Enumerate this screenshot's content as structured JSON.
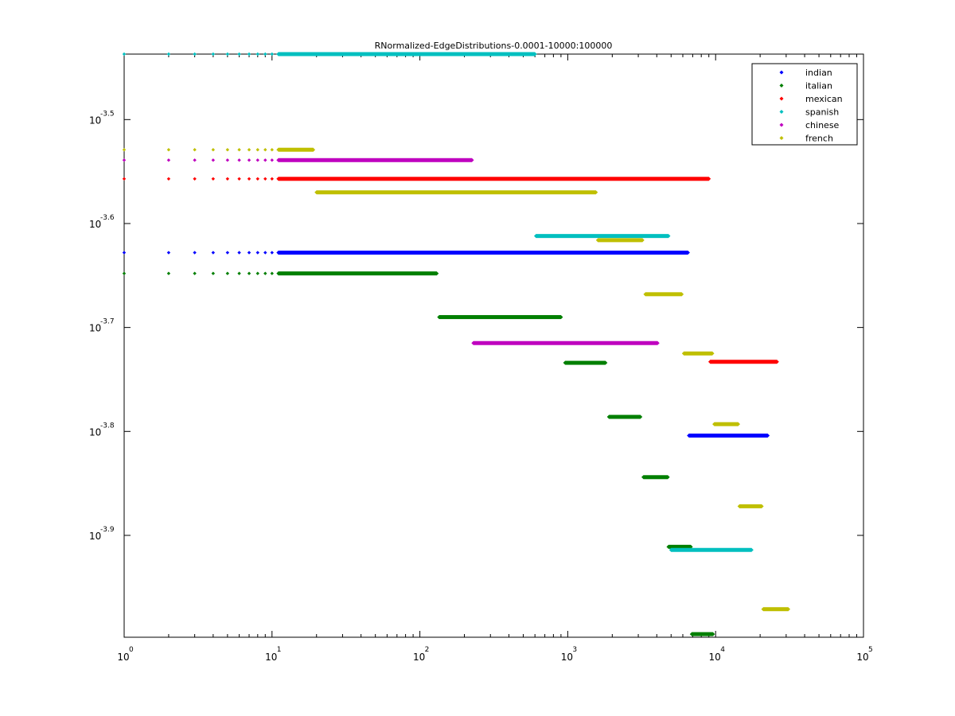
{
  "chart_data": {
    "type": "scatter",
    "title": "RNormalized-EdgeDistributions-0.0001-10000:100000",
    "x_scale": "log",
    "y_scale": "log",
    "xlim": [
      1,
      100000
    ],
    "ylim_exponent": [
      -3.998,
      -3.437
    ],
    "legend_position": "top-right",
    "x_ticks": [
      {
        "base": "10",
        "exp": "0",
        "value": 1
      },
      {
        "base": "10",
        "exp": "1",
        "value": 10
      },
      {
        "base": "10",
        "exp": "2",
        "value": 100
      },
      {
        "base": "10",
        "exp": "3",
        "value": 1000
      },
      {
        "base": "10",
        "exp": "4",
        "value": 10000
      },
      {
        "base": "10",
        "exp": "5",
        "value": 100000
      }
    ],
    "y_ticks": [
      {
        "base": "10",
        "exp": "-3.5",
        "value": -3.5
      },
      {
        "base": "10",
        "exp": "-3.6",
        "value": -3.6
      },
      {
        "base": "10",
        "exp": "-3.7",
        "value": -3.7
      },
      {
        "base": "10",
        "exp": "-3.8",
        "value": -3.8
      },
      {
        "base": "10",
        "exp": "-3.9",
        "value": -3.9
      }
    ],
    "series": [
      {
        "name": "indian",
        "color": "#0000ff",
        "runs": [
          {
            "y": -3.628,
            "x_start": 1,
            "x_end": 6500
          },
          {
            "y": -3.804,
            "x_start": 6600,
            "x_end": 22500
          }
        ]
      },
      {
        "name": "italian",
        "color": "#007f00",
        "runs": [
          {
            "y": -3.648,
            "x_start": 1,
            "x_end": 130
          },
          {
            "y": -3.69,
            "x_start": 135,
            "x_end": 900
          },
          {
            "y": -3.734,
            "x_start": 960,
            "x_end": 1800
          },
          {
            "y": -3.786,
            "x_start": 1900,
            "x_end": 3100
          },
          {
            "y": -3.844,
            "x_start": 3250,
            "x_end": 4750
          },
          {
            "y": -3.911,
            "x_start": 4800,
            "x_end": 6800
          },
          {
            "y": -3.995,
            "x_start": 6900,
            "x_end": 9600
          }
        ]
      },
      {
        "name": "mexican",
        "color": "#ff0000",
        "runs": [
          {
            "y": -3.557,
            "x_start": 1,
            "x_end": 9000
          },
          {
            "y": -3.733,
            "x_start": 9200,
            "x_end": 26000
          }
        ]
      },
      {
        "name": "spanish",
        "color": "#00bfbf",
        "runs": [
          {
            "y": -3.437,
            "x_start": 1,
            "x_end": 600
          },
          {
            "y": -3.612,
            "x_start": 610,
            "x_end": 4800
          },
          {
            "y": -3.914,
            "x_start": 5000,
            "x_end": 17500
          }
        ]
      },
      {
        "name": "chinese",
        "color": "#bf00bf",
        "runs": [
          {
            "y": -3.539,
            "x_start": 1,
            "x_end": 225
          },
          {
            "y": -3.715,
            "x_start": 230,
            "x_end": 4050
          }
        ]
      },
      {
        "name": "french",
        "color": "#bfbf00",
        "runs": [
          {
            "y": -3.529,
            "x_start": 1,
            "x_end": 19
          },
          {
            "y": -3.57,
            "x_start": 20,
            "x_end": 1550
          },
          {
            "y": -3.616,
            "x_start": 1600,
            "x_end": 3200
          },
          {
            "y": -3.668,
            "x_start": 3350,
            "x_end": 5900
          },
          {
            "y": -3.725,
            "x_start": 6100,
            "x_end": 9500
          },
          {
            "y": -3.793,
            "x_start": 9800,
            "x_end": 14200
          },
          {
            "y": -3.872,
            "x_start": 14500,
            "x_end": 20500
          },
          {
            "y": -3.971,
            "x_start": 21000,
            "x_end": 31000
          }
        ]
      }
    ]
  }
}
